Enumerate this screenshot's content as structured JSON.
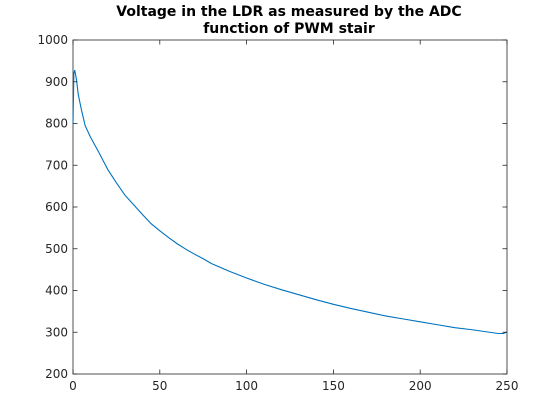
{
  "chart_data": {
    "type": "line",
    "title_lines": [
      "Voltage in the LDR as measured by the ADC",
      "function of PWM stair"
    ],
    "xlabel": "",
    "ylabel": "",
    "xlim": [
      0,
      250
    ],
    "ylim": [
      200,
      1000
    ],
    "xticks": [
      0,
      50,
      100,
      150,
      200,
      250
    ],
    "yticks": [
      200,
      300,
      400,
      500,
      600,
      700,
      800,
      900,
      1000
    ],
    "grid": false,
    "series": [
      {
        "color": "#0072bd",
        "x": [
          0,
          0.5,
          1,
          2,
          3,
          5,
          7,
          10,
          15,
          20,
          25,
          30,
          35,
          40,
          45,
          50,
          55,
          60,
          65,
          70,
          75,
          80,
          90,
          100,
          110,
          120,
          130,
          140,
          150,
          160,
          170,
          180,
          190,
          200,
          210,
          220,
          230,
          240,
          245,
          248,
          250
        ],
        "y": [
          800,
          920,
          928,
          905,
          870,
          830,
          795,
          768,
          730,
          690,
          658,
          628,
          605,
          582,
          560,
          543,
          527,
          512,
          499,
          487,
          476,
          464,
          446,
          430,
          415,
          402,
          390,
          378,
          367,
          357,
          348,
          339,
          332,
          325,
          318,
          311,
          306,
          300,
          297,
          297,
          301
        ]
      }
    ]
  }
}
